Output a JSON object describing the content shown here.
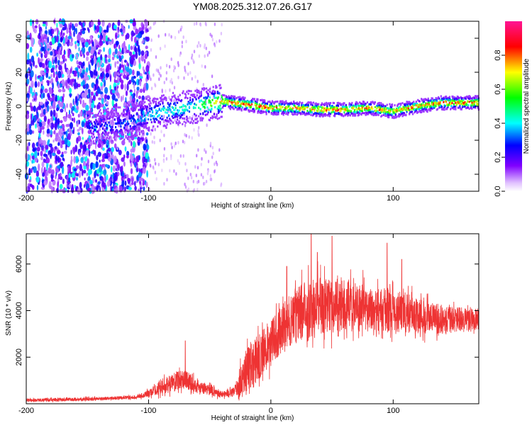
{
  "title": "YM08.2025.312.07.26.G17",
  "chart_data": [
    {
      "type": "heatmap",
      "name": "spectrogram",
      "xlabel": "Height of straight line (km)",
      "ylabel": "Frequency (Hz)",
      "xlim": [
        -200,
        170
      ],
      "ylim": [
        -50,
        50
      ],
      "xticks": [
        -200,
        -100,
        0,
        100
      ],
      "yticks": [
        -40,
        -20,
        0,
        20,
        40
      ],
      "colorbar": {
        "label": "Normalized spectral amplitude",
        "range": [
          0,
          1
        ],
        "ticks": [
          "0.0",
          "0.2",
          "0.4",
          "0.6",
          "0.8"
        ],
        "colormap": [
          "#ffffff",
          "#8000ff",
          "#0000ff",
          "#00ffff",
          "#00ff00",
          "#ffff00",
          "#ff0000",
          "#ff1493"
        ]
      },
      "ridge": {
        "x": [
          -140,
          -120,
          -100,
          -80,
          -60,
          -40,
          -20,
          0,
          20,
          40,
          60,
          80,
          100,
          120,
          140,
          170
        ],
        "freq": [
          -12,
          -10,
          -5,
          -2,
          0,
          3,
          1,
          -1,
          -1,
          -2,
          -2,
          -1,
          -3,
          0,
          2,
          2
        ],
        "peak_amplitude": [
          0.3,
          0.35,
          0.45,
          0.5,
          0.5,
          0.85,
          0.95,
          0.9,
          0.9,
          0.9,
          0.9,
          0.9,
          0.85,
          0.9,
          0.9,
          0.9
        ]
      }
    },
    {
      "type": "line",
      "name": "snr",
      "xlabel": "Height of straight line (km)",
      "ylabel": "SNR (10 * v/v)",
      "xlim": [
        -200,
        170
      ],
      "ylim": [
        0,
        7300
      ],
      "xticks": [
        -200,
        -100,
        0,
        100
      ],
      "yticks": [
        2000,
        4000,
        6000
      ],
      "color": "#ee3333",
      "envelope": {
        "x": [
          -200,
          -150,
          -110,
          -100,
          -90,
          -80,
          -70,
          -60,
          -50,
          -40,
          -30,
          -25,
          -20,
          -10,
          0,
          10,
          20,
          30,
          40,
          50,
          60,
          80,
          100,
          120,
          140,
          170
        ],
        "mean": [
          150,
          200,
          280,
          450,
          700,
          900,
          1100,
          700,
          600,
          400,
          500,
          900,
          1500,
          2000,
          2600,
          3300,
          3800,
          4100,
          4300,
          4200,
          4200,
          4100,
          4000,
          3800,
          3600,
          3600
        ],
        "spread": [
          150,
          150,
          150,
          300,
          600,
          800,
          900,
          500,
          500,
          300,
          400,
          1500,
          2000,
          2000,
          2000,
          2000,
          2400,
          2600,
          2600,
          2400,
          2200,
          2000,
          1800,
          1600,
          1200,
          1000
        ]
      },
      "peaks": [
        {
          "x": 33,
          "y": 7300
        },
        {
          "x": 50,
          "y": 7200
        },
        {
          "x": 95,
          "y": 6900
        },
        {
          "x": 38,
          "y": 6500
        },
        {
          "x": 107,
          "y": 6200
        },
        {
          "x": 13,
          "y": 5900
        },
        {
          "x": -70,
          "y": 2700
        }
      ]
    }
  ]
}
